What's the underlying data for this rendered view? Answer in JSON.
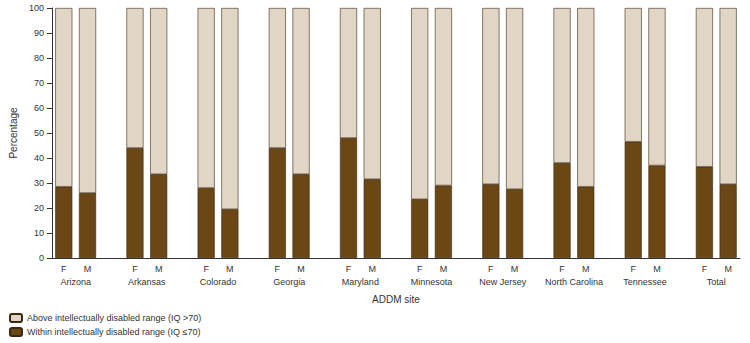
{
  "chart_data": {
    "type": "bar",
    "stacked": true,
    "grid": false,
    "legend": "bottom-left",
    "y_label": "Percentage",
    "x_label": "ADDM site",
    "group_labels": [
      "Arizona",
      "Arkansas",
      "Colorado",
      "Georgia",
      "Maryland",
      "Minnesota",
      "New Jersey",
      "North Carolina",
      "Tennessee",
      "Total"
    ],
    "categories": [
      "F",
      "M",
      null,
      "F",
      "M",
      null,
      "F",
      "M",
      null,
      "F",
      "M",
      null,
      "F",
      "M",
      null,
      "F",
      "M",
      null,
      "F",
      "M",
      null,
      "F",
      "M",
      null,
      "F",
      "M",
      null,
      "F",
      "M"
    ],
    "series": [
      {
        "name": "Above intellectually disabled range (IQ >70)",
        "color": "#e1d5c5",
        "values": [
          71.5,
          74,
          null,
          56,
          66.5,
          null,
          72,
          80.5,
          null,
          56,
          66.5,
          null,
          52,
          68.5,
          null,
          76.5,
          71,
          null,
          70.5,
          72.5,
          null,
          62,
          71.5,
          null,
          53.5,
          63,
          null,
          63.5,
          70.5
        ]
      },
      {
        "name": "Within intellectually disabled range (IQ ≤70)",
        "color": "#6b4716",
        "values": [
          28.5,
          26,
          null,
          44,
          33.5,
          null,
          28,
          19.5,
          null,
          44,
          33.5,
          null,
          48,
          31.5,
          null,
          23.5,
          29,
          null,
          29.5,
          27.5,
          null,
          38,
          28.5,
          null,
          46.5,
          37,
          null,
          36.5,
          29.5
        ]
      }
    ],
    "ylim": [
      0,
      100
    ],
    "yticks": [
      0,
      10,
      20,
      30,
      40,
      50,
      60,
      70,
      80,
      90,
      100
    ]
  }
}
